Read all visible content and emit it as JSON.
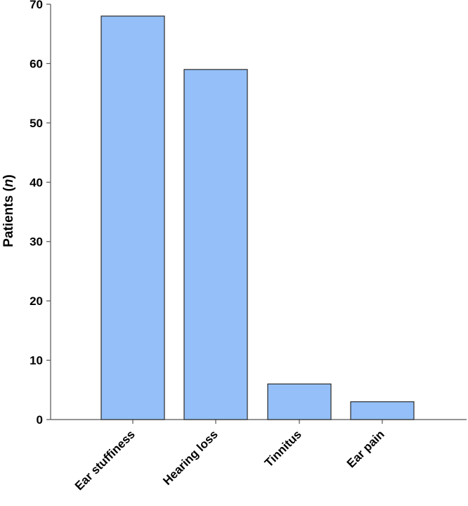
{
  "chart_data": {
    "type": "bar",
    "categories": [
      "Ear stuffiness",
      "Hearing loss",
      "Tinnitus",
      "Ear pain"
    ],
    "values": [
      68,
      59,
      6,
      3
    ],
    "title": "",
    "xlabel": "",
    "ylabel": "Patients (n)",
    "ylabel_parts": {
      "main": "Patients (",
      "italic": "n",
      "close": ")"
    },
    "ylim": [
      0,
      70
    ],
    "yticks": [
      0,
      10,
      20,
      30,
      40,
      50,
      60,
      70
    ],
    "grid": false,
    "legend": "none",
    "colors": {
      "bar_fill": "#94bff8",
      "bar_stroke": "#2b2b2b",
      "axis": "#555555"
    }
  }
}
